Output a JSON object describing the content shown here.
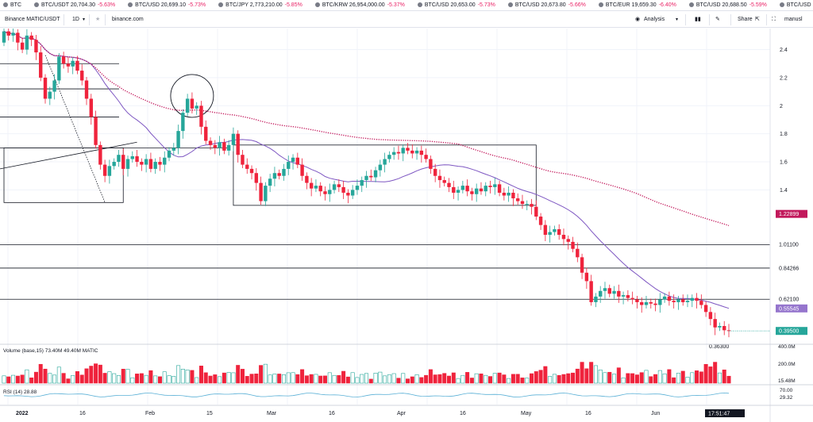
{
  "ticker": [
    {
      "sym": "BTC",
      "price": "",
      "change": ""
    },
    {
      "sym": "BTC/USDT",
      "price": "20,704.30",
      "change": "-5.63%"
    },
    {
      "sym": "BTC/USD",
      "price": "20,699.10",
      "change": "-5.73%"
    },
    {
      "sym": "BTC/JPY",
      "price": "2,773,210.00",
      "change": "-5.85%"
    },
    {
      "sym": "BTC/KRW",
      "price": "26,954,000.00",
      "change": "-5.37%"
    },
    {
      "sym": "BTC/USD",
      "price": "20,653.00",
      "change": "-5.73%"
    },
    {
      "sym": "BTC/USD",
      "price": "20,673.80",
      "change": "-5.66%"
    },
    {
      "sym": "BTC/EUR",
      "price": "19,659.30",
      "change": "-6.40%"
    },
    {
      "sym": "BTC/USD",
      "price": "20,688.50",
      "change": "-5.59%"
    },
    {
      "sym": "BTC/USD",
      "price": "",
      "change": ""
    }
  ],
  "toolbar": {
    "symbol": "Binance MATIC/USDT",
    "interval": "1D",
    "star": "★",
    "site": "binance.com",
    "analysis": "Analysis",
    "share": "Share",
    "user": "manusl"
  },
  "colors": {
    "up": "#26a69a",
    "down": "#ef233c",
    "ma": "#7e57c2",
    "ma_long": "#c2185b",
    "grid": "#f0f3fa",
    "rsi": "#5ab0d6"
  },
  "chart_data": {
    "type": "candlestick",
    "symbol": "MATIC/USDT",
    "interval": "1D",
    "source": "binance.com",
    "y_axis": {
      "ticks": [
        2.4,
        2.2,
        2.0,
        1.8,
        1.6,
        1.4
      ],
      "range": [
        0.3,
        2.55
      ]
    },
    "x_axis": {
      "labels": [
        "2022",
        "16",
        "Feb",
        "15",
        "Mar",
        "16",
        "Apr",
        "16",
        "May",
        "16",
        "Jun"
      ],
      "current_time": "17:51:47"
    },
    "price_labels": [
      {
        "text": "1.22899",
        "value": 1.22899,
        "style": "ma_long"
      },
      {
        "text": "1.01100",
        "value": 1.011,
        "style": "level"
      },
      {
        "text": "0.84266",
        "value": 0.84266,
        "style": "level"
      },
      {
        "text": "0.62100",
        "value": 0.621,
        "style": "level"
      },
      {
        "text": "0.55545",
        "value": 0.55545,
        "style": "ma"
      },
      {
        "text": "0.39500",
        "value": 0.395,
        "style": "last"
      },
      {
        "text": "0.36300",
        "value": 0.363,
        "style": "low"
      }
    ],
    "horizontal_levels": [
      1.7,
      1.92,
      2.12,
      2.3,
      1.01,
      0.843,
      0.621
    ],
    "rectangles": [
      {
        "from_day": 0,
        "to_day": 26,
        "low": 1.31,
        "high": 1.7
      },
      {
        "from_day": 50,
        "to_day": 116,
        "low": 1.29,
        "high": 1.72
      }
    ],
    "circle": {
      "day": 41,
      "price": 2.07
    },
    "close_series": [
      2.53,
      2.5,
      2.52,
      2.45,
      2.4,
      2.5,
      2.47,
      2.38,
      2.2,
      2.05,
      2.1,
      2.18,
      2.35,
      2.3,
      2.28,
      2.32,
      2.25,
      2.18,
      2.05,
      1.92,
      1.72,
      1.58,
      1.5,
      1.57,
      1.6,
      1.65,
      1.55,
      1.62,
      1.64,
      1.6,
      1.58,
      1.62,
      1.55,
      1.6,
      1.58,
      1.63,
      1.68,
      1.7,
      1.82,
      1.95,
      2.05,
      1.98,
      2.0,
      1.85,
      1.75,
      1.72,
      1.7,
      1.74,
      1.68,
      1.72,
      1.8,
      1.65,
      1.58,
      1.55,
      1.52,
      1.45,
      1.32,
      1.43,
      1.48,
      1.52,
      1.5,
      1.55,
      1.6,
      1.63,
      1.58,
      1.5,
      1.45,
      1.41,
      1.43,
      1.39,
      1.37,
      1.4,
      1.44,
      1.42,
      1.38,
      1.36,
      1.4,
      1.43,
      1.47,
      1.5,
      1.49,
      1.54,
      1.58,
      1.62,
      1.65,
      1.67,
      1.66,
      1.7,
      1.68,
      1.66,
      1.68,
      1.65,
      1.62,
      1.55,
      1.5,
      1.47,
      1.45,
      1.42,
      1.38,
      1.4,
      1.43,
      1.39,
      1.37,
      1.41,
      1.39,
      1.43,
      1.42,
      1.44,
      1.38,
      1.36,
      1.38,
      1.34,
      1.32,
      1.3,
      1.3,
      1.28,
      1.21,
      1.15,
      1.08,
      1.1,
      1.12,
      1.08,
      1.05,
      1.03,
      0.98,
      0.92,
      0.81,
      0.75,
      0.6,
      0.64,
      0.68,
      0.7,
      0.66,
      0.68,
      0.64,
      0.65,
      0.63,
      0.62,
      0.6,
      0.58,
      0.6,
      0.59,
      0.58,
      0.62,
      0.64,
      0.61,
      0.6,
      0.62,
      0.6,
      0.61,
      0.63,
      0.61,
      0.58,
      0.53,
      0.48,
      0.42,
      0.43,
      0.4,
      0.395
    ],
    "volume": {
      "label": "Volume (base,15)",
      "values_text": "73.40M 49.40M",
      "unit": "MATIC",
      "ticks": [
        "400.0M",
        "200.0M",
        "15.48M"
      ]
    },
    "rsi": {
      "label": "RSI (14)",
      "value": "28.88",
      "ticks": [
        "70.00",
        "29.32"
      ]
    }
  }
}
